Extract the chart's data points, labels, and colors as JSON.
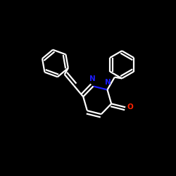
{
  "background_color": "#000000",
  "bond_color": "#ffffff",
  "N_color": "#1c1cff",
  "O_color": "#ff2200",
  "line_width": 1.6,
  "figsize": [
    2.5,
    2.5
  ],
  "dpi": 100,
  "xlim": [
    0.0,
    1.0
  ],
  "ylim": [
    0.0,
    1.0
  ]
}
